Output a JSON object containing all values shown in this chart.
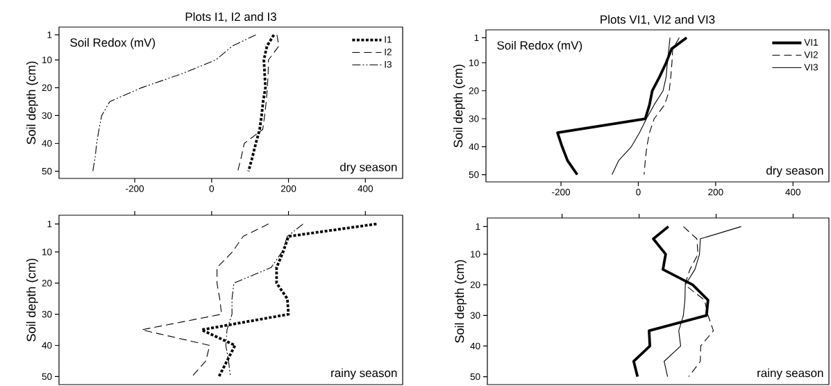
{
  "chart_data": [
    {
      "type": "line",
      "title": "Plots I1, I2 and I3",
      "xlabel": "Soil Redox (mV)",
      "ylabel": "Soil depth (cm)",
      "annotations": [
        "dry season"
      ],
      "xlim": [
        -397,
        497
      ],
      "ylim": [
        52.6,
        -1.8
      ],
      "xticks": [
        -200,
        0,
        200,
        400
      ],
      "yticks": [
        1,
        10,
        20,
        30,
        40,
        50
      ],
      "legend": "top right",
      "series": [
        {
          "name": "I1",
          "color": "#000000",
          "line_style": "dotted",
          "x": [
            162,
            144,
            136,
            138,
            140,
            134,
            130,
            125,
            115,
            106,
            96
          ],
          "values": [
            1,
            5,
            10,
            15,
            20,
            25,
            30,
            35,
            40,
            45,
            50
          ]
        },
        {
          "name": "I2",
          "color": "#000000",
          "line_style": "dashed",
          "x": [
            170,
            175,
            148,
            147,
            145,
            142,
            138,
            133,
            85,
            77,
            68
          ],
          "values": [
            1,
            5,
            10,
            15,
            20,
            25,
            30,
            35,
            40,
            45,
            50
          ]
        },
        {
          "name": "I3",
          "color": "#000000",
          "line_style": "dashdotdotted",
          "x": [
            115,
            54,
            11,
            -78,
            -182,
            -265,
            -286,
            -293,
            -299,
            -303,
            -309
          ],
          "values": [
            1,
            5,
            10,
            15,
            20,
            25,
            30,
            35,
            40,
            45,
            50
          ]
        }
      ]
    },
    {
      "type": "line",
      "title": "Plots VI1, VI2 and VI3",
      "xlabel": "Soil Redox (mV)",
      "ylabel": "Soil depth (cm)",
      "annotations": [
        "dry season"
      ],
      "xlim": [
        -394,
        493
      ],
      "ylim": [
        52.6,
        -1.8
      ],
      "xticks": [
        -200,
        0,
        200,
        400
      ],
      "yticks": [
        1,
        10,
        20,
        30,
        40,
        50
      ],
      "legend": "top right",
      "series": [
        {
          "name": "VI1",
          "color": "#000000",
          "line_style": "solid",
          "x": [
            125,
            86,
            72,
            55,
            36,
            29,
            18,
            -209,
            -197,
            -183,
            -158
          ],
          "values": [
            1,
            5,
            10,
            15,
            20,
            25,
            30,
            35,
            40,
            45,
            50
          ]
        },
        {
          "name": "VI2",
          "color": "#000000",
          "line_style": "dashed",
          "x": [
            106,
            89,
            87,
            84,
            80,
            68,
            41,
            29,
            22,
            18,
            15
          ],
          "values": [
            1,
            5,
            10,
            15,
            20,
            25,
            30,
            35,
            40,
            45,
            50
          ]
        },
        {
          "name": "VI3",
          "color": "#000000",
          "line_style": "solid",
          "x": [
            82,
            79,
            75,
            72,
            64,
            41,
            21,
            3,
            -18,
            -51,
            -68
          ],
          "values": [
            1,
            5,
            10,
            15,
            20,
            25,
            30,
            35,
            40,
            45,
            50
          ]
        }
      ]
    },
    {
      "type": "line",
      "ylabel": "Soil depth (cm)",
      "annotations": [
        "rainy season"
      ],
      "xlim": [
        -397,
        497
      ],
      "ylim": [
        52.6,
        -1.8
      ],
      "xticks": [
        -200,
        0,
        200,
        400
      ],
      "yticks": [
        1,
        10,
        20,
        30,
        40,
        50
      ],
      "tick_labels": "y",
      "series": [
        {
          "color": "#000000",
          "line_style": "dotted",
          "x": [
            429,
            200,
            186,
            169,
            169,
            197,
            200,
            -26,
            61,
            40,
            19
          ],
          "values": [
            1,
            5,
            10,
            15,
            20,
            25,
            30,
            35,
            40,
            45,
            50
          ]
        },
        {
          "color": "#000000",
          "line_style": "dashed",
          "x": [
            148,
            82,
            54,
            14,
            14,
            21,
            26,
            -182,
            -5,
            -15,
            -51
          ],
          "values": [
            1,
            5,
            10,
            15,
            20,
            25,
            30,
            35,
            40,
            45,
            50
          ]
        },
        {
          "color": "#000000",
          "line_style": "dashdotdotted",
          "x": [
            238,
            197,
            183,
            155,
            58,
            53,
            53,
            40,
            37,
            44,
            49
          ],
          "values": [
            1,
            5,
            10,
            15,
            20,
            25,
            30,
            35,
            40,
            45,
            50
          ]
        }
      ]
    },
    {
      "type": "line",
      "ylabel": "Soil depth (cm)",
      "annotations": [
        "rainy season"
      ],
      "xlim": [
        -394,
        493
      ],
      "ylim": [
        52.6,
        -1.8
      ],
      "xticks": [
        -200,
        0,
        200,
        400
      ],
      "yticks": [
        1,
        10,
        20,
        30,
        40,
        50
      ],
      "tick_labels": "y",
      "series": [
        {
          "color": "#000000",
          "line_style": "solid",
          "x": [
            76,
            37,
            69,
            62,
            139,
            179,
            175,
            26,
            28,
            -14,
            -4
          ],
          "values": [
            1,
            5,
            10,
            15,
            20,
            25,
            30,
            35,
            40,
            45,
            50
          ]
        },
        {
          "color": "#000000",
          "line_style": "dashed",
          "x": [
            115,
            150,
            153,
            132,
            119,
            170,
            179,
            193,
            160,
            159,
            129
          ],
          "values": [
            1,
            5,
            10,
            15,
            20,
            25,
            30,
            35,
            40,
            45,
            50
          ]
        },
        {
          "color": "#000000",
          "line_style": "solid",
          "x": [
            265,
            159,
            157,
            145,
            120,
            119,
            115,
            103,
            108,
            65,
            74
          ],
          "values": [
            1,
            5,
            10,
            15,
            20,
            25,
            30,
            35,
            40,
            45,
            50
          ]
        }
      ]
    }
  ]
}
